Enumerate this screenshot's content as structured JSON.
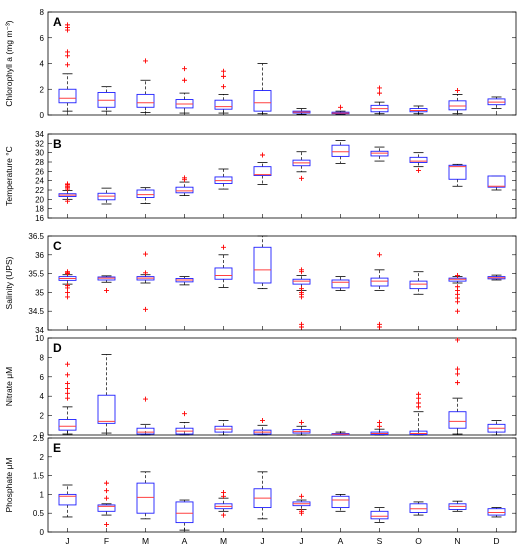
{
  "months": [
    "J",
    "F",
    "M",
    "A",
    "M",
    "J",
    "J",
    "A",
    "S",
    "O",
    "N",
    "D"
  ],
  "colors": {
    "box": "#1f1fff",
    "median": "#ff4040",
    "whisker": "#000000",
    "outlier": "#ff0000"
  },
  "chart_data": [
    {
      "type": "box",
      "panel_label": "A",
      "ylabel": "Chlorophyll a (mg m⁻³)",
      "ylim": [
        0,
        8
      ],
      "yticks": [
        0,
        2,
        4,
        6,
        8
      ],
      "boxes": [
        {
          "month": "J",
          "q1": 0.95,
          "median": 1.3,
          "q3": 2.0,
          "lo": 0.3,
          "hi": 3.2,
          "outliers": [
            3.9,
            4.6,
            4.9,
            6.6,
            6.8,
            7.0
          ]
        },
        {
          "month": "F",
          "q1": 0.6,
          "median": 1.15,
          "q3": 1.75,
          "lo": 0.3,
          "hi": 2.2,
          "outliers": []
        },
        {
          "month": "M",
          "q1": 0.6,
          "median": 0.95,
          "q3": 1.6,
          "lo": 0.2,
          "hi": 2.7,
          "outliers": [
            4.2
          ]
        },
        {
          "month": "A",
          "q1": 0.55,
          "median": 0.85,
          "q3": 1.2,
          "lo": 0.15,
          "hi": 1.7,
          "outliers": [
            2.7,
            3.6
          ]
        },
        {
          "month": "M",
          "q1": 0.45,
          "median": 0.65,
          "q3": 1.15,
          "lo": 0.15,
          "hi": 1.6,
          "outliers": [
            2.2,
            3.0,
            3.4
          ]
        },
        {
          "month": "J",
          "q1": 0.3,
          "median": 0.95,
          "q3": 1.9,
          "lo": 0.1,
          "hi": 4.0,
          "outliers": []
        },
        {
          "month": "J",
          "q1": 0.15,
          "median": 0.22,
          "q3": 0.3,
          "lo": 0.05,
          "hi": 0.5,
          "outliers": []
        },
        {
          "month": "A",
          "q1": 0.1,
          "median": 0.15,
          "q3": 0.22,
          "lo": 0.05,
          "hi": 0.3,
          "outliers": [
            0.6
          ]
        },
        {
          "month": "S",
          "q1": 0.25,
          "median": 0.5,
          "q3": 0.75,
          "lo": 0.1,
          "hi": 1.0,
          "outliers": [
            1.7,
            2.1
          ]
        },
        {
          "month": "O",
          "q1": 0.25,
          "median": 0.35,
          "q3": 0.5,
          "lo": 0.1,
          "hi": 0.7,
          "outliers": []
        },
        {
          "month": "N",
          "q1": 0.4,
          "median": 0.7,
          "q3": 1.1,
          "lo": 0.1,
          "hi": 1.6,
          "outliers": [
            1.9
          ]
        },
        {
          "month": "D",
          "q1": 0.8,
          "median": 1.0,
          "q3": 1.25,
          "lo": 0.5,
          "hi": 1.4,
          "outliers": []
        }
      ]
    },
    {
      "type": "box",
      "panel_label": "B",
      "ylabel": "Temperature °C",
      "ylim": [
        16,
        34
      ],
      "yticks": [
        16,
        18,
        20,
        22,
        24,
        26,
        28,
        30,
        32,
        34
      ],
      "boxes": [
        {
          "month": "J",
          "q1": 20.6,
          "median": 20.9,
          "q3": 21.2,
          "lo": 20.0,
          "hi": 21.9,
          "outliers": [
            19.6,
            22.2,
            22.5,
            22.8,
            23.1,
            23.3
          ]
        },
        {
          "month": "F",
          "q1": 19.9,
          "median": 20.7,
          "q3": 21.3,
          "lo": 19.0,
          "hi": 22.4,
          "outliers": []
        },
        {
          "month": "M",
          "q1": 20.4,
          "median": 21.0,
          "q3": 22.0,
          "lo": 19.1,
          "hi": 22.5,
          "outliers": []
        },
        {
          "month": "A",
          "q1": 21.4,
          "median": 21.8,
          "q3": 22.6,
          "lo": 20.8,
          "hi": 23.7,
          "outliers": [
            24.2,
            24.6
          ]
        },
        {
          "month": "M",
          "q1": 23.4,
          "median": 24.0,
          "q3": 24.8,
          "lo": 22.2,
          "hi": 26.5,
          "outliers": []
        },
        {
          "month": "J",
          "q1": 25.1,
          "median": 25.3,
          "q3": 27.0,
          "lo": 23.2,
          "hi": 27.9,
          "outliers": [
            29.5
          ]
        },
        {
          "month": "J",
          "q1": 27.2,
          "median": 27.8,
          "q3": 28.4,
          "lo": 25.9,
          "hi": 30.2,
          "outliers": [
            24.5
          ]
        },
        {
          "month": "A",
          "q1": 29.2,
          "median": 30.2,
          "q3": 31.6,
          "lo": 27.7,
          "hi": 32.6,
          "outliers": []
        },
        {
          "month": "S",
          "q1": 29.3,
          "median": 29.9,
          "q3": 30.3,
          "lo": 28.2,
          "hi": 31.2,
          "outliers": []
        },
        {
          "month": "O",
          "q1": 27.9,
          "median": 28.2,
          "q3": 29.0,
          "lo": 27.0,
          "hi": 30.0,
          "outliers": [
            26.2
          ]
        },
        {
          "month": "N",
          "q1": 24.3,
          "median": 27.0,
          "q3": 27.3,
          "lo": 22.8,
          "hi": 27.5,
          "outliers": []
        },
        {
          "month": "D",
          "q1": 22.6,
          "median": 22.8,
          "q3": 25.0,
          "lo": 22.0,
          "hi": 25.0,
          "outliers": []
        }
      ]
    },
    {
      "type": "box",
      "panel_label": "C",
      "ylabel": "Salinity (UPS)",
      "ylim": [
        34,
        36.5
      ],
      "yticks": [
        34,
        34.5,
        35,
        35.5,
        36,
        36.5
      ],
      "boxes": [
        {
          "month": "J",
          "q1": 35.32,
          "median": 35.37,
          "q3": 35.42,
          "lo": 35.22,
          "hi": 35.47,
          "outliers": [
            35.0,
            34.88,
            35.12,
            35.18,
            35.5,
            35.52,
            35.55
          ]
        },
        {
          "month": "F",
          "q1": 35.33,
          "median": 35.38,
          "q3": 35.41,
          "lo": 35.27,
          "hi": 35.44,
          "outliers": [
            35.05
          ]
        },
        {
          "month": "M",
          "q1": 35.33,
          "median": 35.38,
          "q3": 35.42,
          "lo": 35.25,
          "hi": 35.47,
          "outliers": [
            34.55,
            35.52,
            36.02
          ]
        },
        {
          "month": "A",
          "q1": 35.28,
          "median": 35.33,
          "q3": 35.37,
          "lo": 35.2,
          "hi": 35.42,
          "outliers": []
        },
        {
          "month": "M",
          "q1": 35.35,
          "median": 35.45,
          "q3": 35.65,
          "lo": 35.13,
          "hi": 36.0,
          "outliers": [
            36.2
          ]
        },
        {
          "month": "J",
          "q1": 35.25,
          "median": 35.6,
          "q3": 36.2,
          "lo": 35.1,
          "hi": 36.5,
          "outliers": []
        },
        {
          "month": "J",
          "q1": 35.22,
          "median": 35.3,
          "q3": 35.35,
          "lo": 35.05,
          "hi": 35.45,
          "outliers": [
            35.6,
            35.55,
            35.1,
            35.0,
            34.95,
            34.88,
            34.15,
            34.08
          ]
        },
        {
          "month": "A",
          "q1": 35.12,
          "median": 35.27,
          "q3": 35.33,
          "lo": 35.05,
          "hi": 35.42,
          "outliers": []
        },
        {
          "month": "S",
          "q1": 35.17,
          "median": 35.3,
          "q3": 35.38,
          "lo": 35.05,
          "hi": 35.6,
          "outliers": [
            36.0,
            34.15,
            34.08
          ]
        },
        {
          "month": "O",
          "q1": 35.1,
          "median": 35.22,
          "q3": 35.3,
          "lo": 34.95,
          "hi": 35.55,
          "outliers": []
        },
        {
          "month": "N",
          "q1": 35.3,
          "median": 35.35,
          "q3": 35.38,
          "lo": 35.25,
          "hi": 35.42,
          "outliers": [
            35.15,
            35.05,
            34.95,
            34.85,
            34.75,
            34.5,
            35.45
          ]
        },
        {
          "month": "D",
          "q1": 35.36,
          "median": 35.39,
          "q3": 35.42,
          "lo": 35.33,
          "hi": 35.46,
          "outliers": []
        }
      ]
    },
    {
      "type": "box",
      "panel_label": "D",
      "ylabel": "Nitrate μM",
      "ylim": [
        0,
        10
      ],
      "yticks": [
        0,
        2,
        4,
        6,
        8,
        10
      ],
      "boxes": [
        {
          "month": "J",
          "q1": 0.5,
          "median": 0.9,
          "q3": 1.6,
          "lo": 0.1,
          "hi": 2.9,
          "outliers": [
            3.8,
            4.3,
            4.8,
            5.3,
            6.2,
            7.3
          ]
        },
        {
          "month": "F",
          "q1": 1.2,
          "median": 1.4,
          "q3": 4.1,
          "lo": 0.2,
          "hi": 8.3,
          "outliers": []
        },
        {
          "month": "M",
          "q1": 0.1,
          "median": 0.3,
          "q3": 0.7,
          "lo": 0.0,
          "hi": 1.1,
          "outliers": [
            3.7
          ]
        },
        {
          "month": "A",
          "q1": 0.1,
          "median": 0.4,
          "q3": 0.7,
          "lo": 0.0,
          "hi": 1.3,
          "outliers": [
            2.2
          ]
        },
        {
          "month": "M",
          "q1": 0.3,
          "median": 0.6,
          "q3": 0.9,
          "lo": 0.0,
          "hi": 1.5,
          "outliers": []
        },
        {
          "month": "J",
          "q1": 0.1,
          "median": 0.3,
          "q3": 0.5,
          "lo": 0.0,
          "hi": 1.0,
          "outliers": [
            1.5
          ]
        },
        {
          "month": "J",
          "q1": 0.2,
          "median": 0.35,
          "q3": 0.55,
          "lo": 0.0,
          "hi": 0.9,
          "outliers": [
            1.3
          ]
        },
        {
          "month": "A",
          "q1": 0.02,
          "median": 0.08,
          "q3": 0.15,
          "lo": 0.0,
          "hi": 0.3,
          "outliers": []
        },
        {
          "month": "S",
          "q1": 0.05,
          "median": 0.15,
          "q3": 0.3,
          "lo": 0.0,
          "hi": 0.6,
          "outliers": [
            0.9,
            1.3
          ]
        },
        {
          "month": "O",
          "q1": 0.05,
          "median": 0.15,
          "q3": 0.4,
          "lo": 0.0,
          "hi": 2.4,
          "outliers": [
            2.9,
            3.3,
            3.8,
            4.2
          ]
        },
        {
          "month": "N",
          "q1": 0.7,
          "median": 1.4,
          "q3": 2.4,
          "lo": 0.1,
          "hi": 3.8,
          "outliers": [
            5.4,
            6.3,
            6.8,
            9.8
          ]
        },
        {
          "month": "D",
          "q1": 0.3,
          "median": 0.7,
          "q3": 1.1,
          "lo": 0.0,
          "hi": 1.5,
          "outliers": []
        }
      ]
    },
    {
      "type": "box",
      "panel_label": "E",
      "ylabel": "Phosphate μM",
      "ylim": [
        0,
        2.5
      ],
      "yticks": [
        0,
        0.5,
        1,
        1.5,
        2,
        2.5
      ],
      "boxes": [
        {
          "month": "J",
          "q1": 0.72,
          "median": 0.95,
          "q3": 1.0,
          "lo": 0.4,
          "hi": 1.25,
          "outliers": []
        },
        {
          "month": "F",
          "q1": 0.55,
          "median": 0.68,
          "q3": 0.72,
          "lo": 0.45,
          "hi": 0.75,
          "outliers": [
            0.9,
            1.1,
            1.3,
            0.2
          ]
        },
        {
          "month": "M",
          "q1": 0.5,
          "median": 0.92,
          "q3": 1.3,
          "lo": 0.35,
          "hi": 1.6,
          "outliers": []
        },
        {
          "month": "A",
          "q1": 0.25,
          "median": 0.5,
          "q3": 0.8,
          "lo": 0.05,
          "hi": 0.85,
          "outliers": []
        },
        {
          "month": "M",
          "q1": 0.62,
          "median": 0.68,
          "q3": 0.75,
          "lo": 0.55,
          "hi": 0.9,
          "outliers": [
            1.05,
            0.95,
            0.45
          ]
        },
        {
          "month": "J",
          "q1": 0.65,
          "median": 0.9,
          "q3": 1.15,
          "lo": 0.35,
          "hi": 1.6,
          "outliers": []
        },
        {
          "month": "J",
          "q1": 0.7,
          "median": 0.75,
          "q3": 0.8,
          "lo": 0.6,
          "hi": 0.85,
          "outliers": [
            0.95,
            0.55,
            0.5
          ]
        },
        {
          "month": "A",
          "q1": 0.65,
          "median": 0.85,
          "q3": 0.95,
          "lo": 0.55,
          "hi": 1.0,
          "outliers": []
        },
        {
          "month": "S",
          "q1": 0.35,
          "median": 0.42,
          "q3": 0.55,
          "lo": 0.25,
          "hi": 0.65,
          "outliers": []
        },
        {
          "month": "O",
          "q1": 0.52,
          "median": 0.62,
          "q3": 0.75,
          "lo": 0.45,
          "hi": 0.8,
          "outliers": []
        },
        {
          "month": "N",
          "q1": 0.6,
          "median": 0.68,
          "q3": 0.75,
          "lo": 0.55,
          "hi": 0.82,
          "outliers": []
        },
        {
          "month": "D",
          "q1": 0.45,
          "median": 0.52,
          "q3": 0.62,
          "lo": 0.4,
          "hi": 0.65,
          "outliers": []
        }
      ]
    }
  ]
}
